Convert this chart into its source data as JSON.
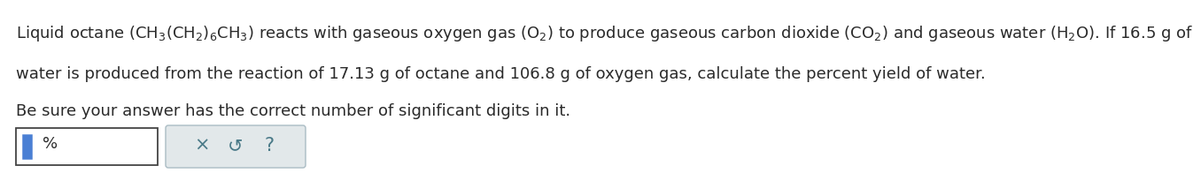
{
  "line1_text": "Liquid octane $\\left(\\mathrm{CH_3(CH_2)_6CH_3}\\right)$ reacts with gaseous oxygen gas $\\left(\\mathrm{O_2}\\right)$ to produce gaseous carbon dioxide $\\left(\\mathrm{CO_2}\\right)$ and gaseous water $\\left(\\mathrm{H_2O}\\right)$. If 16.5 g of",
  "line2_text": "water is produced from the reaction of 17.13 g of octane and 106.8 g of oxygen gas, calculate the percent yield of water.",
  "line3_text": "Be sure your answer has the correct number of significant digits in it.",
  "percent_text": "%",
  "button_symbols": [
    "×",
    "↺",
    "?"
  ],
  "text_color": "#2a2a2a",
  "font_size": 13.0,
  "background_color": "#ffffff",
  "input_cursor_color": "#4a7fd4",
  "button_bg": "#e2e8ea",
  "button_border": "#aabcc4",
  "button_text_color": "#4a7a88"
}
